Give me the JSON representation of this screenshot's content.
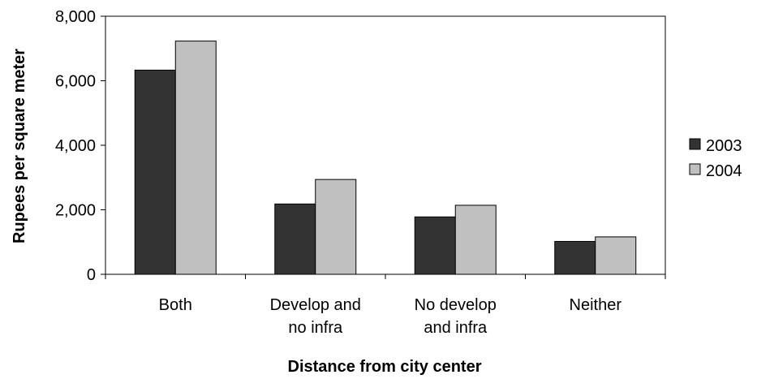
{
  "chart_data": {
    "type": "bar",
    "title": "",
    "xlabel": "Distance from city center",
    "ylabel": "Rupees per square meter",
    "categories": [
      [
        "Both"
      ],
      [
        "Develop and",
        "no infra"
      ],
      [
        "No develop",
        "and infra"
      ],
      [
        "Neither"
      ]
    ],
    "series": [
      {
        "name": "2003",
        "color": "#333333",
        "values": [
          6330,
          2180,
          1780,
          1020
        ]
      },
      {
        "name": "2004",
        "color": "#c0c0c0",
        "values": [
          7230,
          2940,
          2140,
          1160
        ]
      }
    ],
    "ylim": [
      0,
      8000
    ],
    "yticks": [
      0,
      2000,
      4000,
      6000,
      8000
    ],
    "ytick_labels": [
      "0",
      "2,000",
      "4,000",
      "6,000",
      "8,000"
    ],
    "grid": false,
    "legend_position": "right"
  }
}
